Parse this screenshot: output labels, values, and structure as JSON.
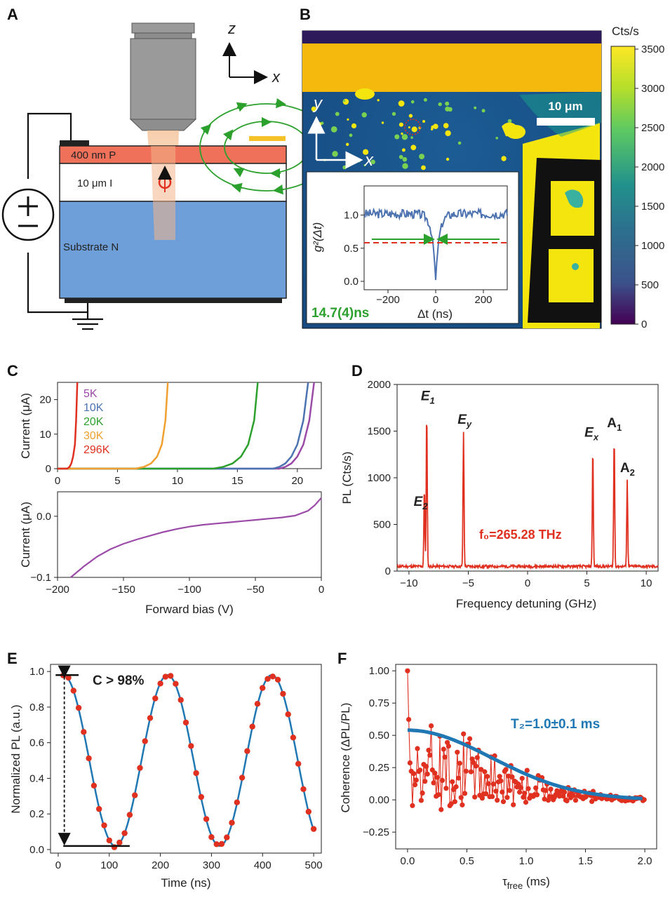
{
  "panels": {
    "A": "A",
    "B": "B",
    "C": "C",
    "D": "D",
    "E": "E",
    "F": "F"
  },
  "panel_a": {
    "axis_z": "z",
    "axis_x": "x",
    "layer_p": "400 nm  P",
    "layer_i": "10 μm  I",
    "layer_n": "Substrate  N",
    "colors": {
      "p_layer": "#f0715a",
      "i_layer": "#ffffff",
      "n_layer": "#6f9fd8",
      "field": "#2ca02c",
      "beam": "#f2b48a",
      "spin": "#e03020",
      "electrode": "#f5c22a"
    }
  },
  "panel_b": {
    "cbar_title": "Cts/s",
    "cbar_ticks": [
      "3500",
      "3000",
      "2500",
      "2000",
      "1500",
      "1000",
      "500",
      "0"
    ],
    "scalebar": "10 μm",
    "axis_y": "y",
    "axis_x": "x",
    "inset": {
      "ylabel": "g²(Δt)",
      "xlabel": "Δt (ns)",
      "yticks": [
        "1.0",
        "0.5",
        "0.0"
      ],
      "xticks": [
        "−200",
        "0",
        "200"
      ],
      "lifetime": "14.7(4)ns"
    },
    "colors": {
      "map_bg": "#1a4f88",
      "bright": "#f5e50f",
      "contact": "#f5b90d",
      "dark": "#2c1a5a",
      "inset_line": "#4c72b0",
      "threshold": "#e03020",
      "arrows": "#2ca02c"
    }
  },
  "chart_data": [
    {
      "id": "C-top",
      "type": "line",
      "xlabel": "",
      "ylabel": "Current (μA)",
      "xlim": [
        0,
        22
      ],
      "ylim": [
        0,
        25
      ],
      "xticks": [
        "0",
        "5",
        "10",
        "15",
        "20"
      ],
      "yticks": [
        "0",
        "10",
        "20"
      ],
      "series": [
        {
          "name": "5K",
          "color": "#9b4aa8",
          "onset": 18.5,
          "x": [
            18.5,
            19,
            19.5,
            20,
            20.5,
            21,
            21.4
          ],
          "y": [
            0,
            0.5,
            1.5,
            3.5,
            7,
            14,
            25
          ]
        },
        {
          "name": "10K",
          "color": "#4c72b0",
          "onset": 18,
          "x": [
            18,
            18.5,
            19,
            19.5,
            20,
            20.5,
            20.9
          ],
          "y": [
            0,
            0.5,
            1.5,
            3.5,
            7,
            14,
            25
          ]
        },
        {
          "name": "20K",
          "color": "#2ca02c",
          "onset": 13,
          "x": [
            13,
            13.8,
            14.6,
            15.3,
            15.9,
            16.4,
            16.7
          ],
          "y": [
            0,
            0.5,
            1.5,
            3.5,
            7,
            14,
            25
          ]
        },
        {
          "name": "30K",
          "color": "#f0a030",
          "onset": 6.5,
          "x": [
            6.5,
            7.2,
            7.8,
            8.3,
            8.7,
            9.0,
            9.2
          ],
          "y": [
            0,
            0.5,
            1.5,
            3.5,
            7,
            14,
            25
          ]
        },
        {
          "name": "296K",
          "color": "#e03020",
          "onset": 0.8,
          "x": [
            0.8,
            1.0,
            1.15,
            1.3,
            1.45,
            1.55,
            1.65
          ],
          "y": [
            0,
            0.5,
            1.5,
            3.5,
            7,
            14,
            25
          ]
        }
      ]
    },
    {
      "id": "C-bottom",
      "type": "line",
      "xlabel": "Forward bias (V)",
      "ylabel": "Current (μA)",
      "xlim": [
        -200,
        0
      ],
      "ylim": [
        -0.1,
        0.04
      ],
      "xticks": [
        "−200",
        "−150",
        "−100",
        "−50",
        "0"
      ],
      "yticks": [
        "−0.1",
        "0.0"
      ],
      "series": [
        {
          "name": "reverse",
          "color": "#9b4aa8",
          "x": [
            -190,
            -180,
            -170,
            -160,
            -150,
            -140,
            -130,
            -120,
            -110,
            -100,
            -90,
            -80,
            -70,
            -60,
            -50,
            -40,
            -30,
            -20,
            -10,
            -5,
            0
          ],
          "y": [
            -0.1,
            -0.082,
            -0.066,
            -0.054,
            -0.045,
            -0.038,
            -0.032,
            -0.026,
            -0.021,
            -0.017,
            -0.014,
            -0.012,
            -0.01,
            -0.008,
            -0.006,
            -0.004,
            -0.002,
            0.001,
            0.009,
            0.018,
            0.03
          ]
        }
      ]
    },
    {
      "id": "D",
      "type": "line",
      "xlabel": "Frequency detuning (GHz)",
      "ylabel": "PL (Cts/s)",
      "xlim": [
        -11,
        11
      ],
      "ylim": [
        0,
        2000
      ],
      "xticks": [
        "−10",
        "−5",
        "0",
        "5",
        "10"
      ],
      "yticks": [
        "0",
        "500",
        "1000",
        "1500",
        "2000"
      ],
      "baseline": 50,
      "color": "#e03020",
      "peaks": [
        {
          "label": "E",
          "sub": "2",
          "x": -8.7,
          "y": 900
        },
        {
          "label": "E",
          "sub": "1",
          "x": -8.5,
          "y": 1730
        },
        {
          "label": "E",
          "sub": "y",
          "x": -5.4,
          "y": 1480
        },
        {
          "label": "E",
          "sub": "x",
          "x": 5.5,
          "y": 1340
        },
        {
          "label": "A",
          "sub": "1",
          "x": 7.3,
          "y": 1450
        },
        {
          "label": "A",
          "sub": "2",
          "x": 8.4,
          "y": 980
        }
      ],
      "annotation": "f₀=265.28 THz"
    },
    {
      "id": "E",
      "type": "scatter",
      "xlabel": "Time (ns)",
      "ylabel": "Normalized PL (a.u.)",
      "xlim": [
        -15,
        515
      ],
      "ylim": [
        -0.02,
        1.04
      ],
      "xticks": [
        "0",
        "100",
        "200",
        "300",
        "400",
        "500"
      ],
      "yticks": [
        "0.0",
        "0.2",
        "0.4",
        "0.6",
        "0.8",
        "1.0"
      ],
      "fit": {
        "period": 204,
        "phase_offset": 10,
        "mean": 0.5,
        "amplitude": 0.48,
        "color": "#1f77b4"
      },
      "point_color": "#e03020",
      "x": [
        10,
        20,
        30,
        40,
        50,
        60,
        70,
        80,
        90,
        100,
        110,
        120,
        130,
        140,
        150,
        160,
        170,
        180,
        190,
        200,
        210,
        220,
        230,
        240,
        250,
        260,
        270,
        280,
        290,
        300,
        310,
        320,
        330,
        340,
        350,
        360,
        370,
        380,
        390,
        400,
        410,
        420,
        430,
        440,
        450,
        460,
        470,
        480,
        490,
        500
      ],
      "annotation": "C > 98%"
    },
    {
      "id": "F",
      "type": "scatter",
      "xlabel": "τfree (ms)",
      "ylabel": "Coherence (ΔPL/PL)",
      "xlim": [
        -0.1,
        2.1
      ],
      "ylim": [
        -0.38,
        1.05
      ],
      "xticks": [
        "0.0",
        "0.5",
        "1.0",
        "1.5",
        "2.0"
      ],
      "yticks": [
        "−0.25",
        "0.00",
        "0.25",
        "0.50",
        "0.75",
        "1.00"
      ],
      "fit": {
        "type": "gaussian",
        "amplitude": 0.54,
        "T2": 1.0,
        "color": "#1f77b4"
      },
      "point_color": "#e03020",
      "first_point": {
        "x": 0.0,
        "y": 1.0
      },
      "annotation": "T₂=1.0±0.1 ms"
    }
  ]
}
